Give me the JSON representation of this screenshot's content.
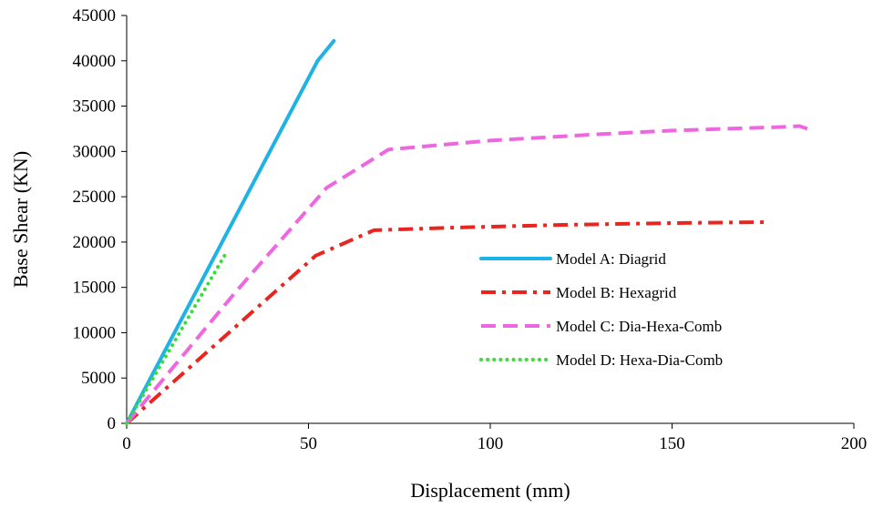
{
  "chart_data": {
    "type": "line",
    "title": "",
    "xlabel": "Displacement (mm)",
    "ylabel": "Base Shear (KN)",
    "xlim": [
      0,
      200
    ],
    "ylim": [
      0,
      45000
    ],
    "xticks": [
      0,
      50,
      100,
      150,
      200
    ],
    "xtick_labels": [
      "0",
      "50",
      "100",
      "150",
      "200"
    ],
    "yticks": [
      0,
      5000,
      10000,
      15000,
      20000,
      25000,
      30000,
      35000,
      40000,
      45000
    ],
    "ytick_labels": [
      "0",
      "5000",
      "10000",
      "15000",
      "20000",
      "25000",
      "30000",
      "35000",
      "40000",
      "45000"
    ],
    "grid": false,
    "legend_position": "center-right",
    "series": [
      {
        "name": "Model A: Diagrid",
        "color": "#1FB2E6",
        "style": "solid",
        "points": [
          [
            0,
            0
          ],
          [
            52.5,
            40000
          ],
          [
            57,
            42200
          ]
        ]
      },
      {
        "name": "Model B: Hexagrid",
        "color": "#E8261F",
        "style": "dashdot",
        "points": [
          [
            0,
            0
          ],
          [
            52,
            18500
          ],
          [
            68,
            21300
          ],
          [
            90,
            21600
          ],
          [
            120,
            21900
          ],
          [
            150,
            22100
          ],
          [
            176,
            22200
          ]
        ]
      },
      {
        "name": "Model C: Dia-Hexa-Comb",
        "color": "#EE66E0",
        "style": "dash",
        "points": [
          [
            0,
            0
          ],
          [
            30,
            14500
          ],
          [
            55,
            26000
          ],
          [
            72,
            30200
          ],
          [
            100,
            31200
          ],
          [
            130,
            31900
          ],
          [
            150,
            32300
          ],
          [
            180,
            32700
          ],
          [
            185,
            32800
          ],
          [
            188,
            32400
          ]
        ]
      },
      {
        "name": "Model D: Hexa-Dia-Comb",
        "color": "#3ADC3A",
        "style": "dot",
        "points": [
          [
            0,
            0
          ],
          [
            27.5,
            18900
          ]
        ]
      }
    ]
  }
}
